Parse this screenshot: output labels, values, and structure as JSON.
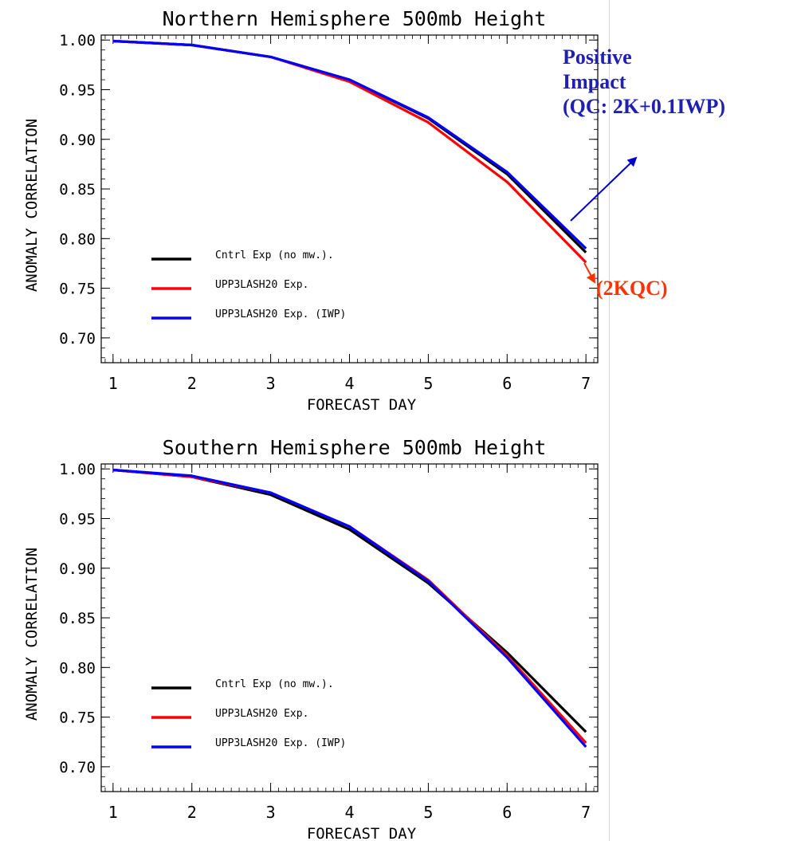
{
  "annotations": {
    "positive_impact": [
      "Positive",
      "Impact",
      "(QC: 2K+0.1IWP)"
    ],
    "qc_2k": "(2KQC)",
    "positive_color": "#1f1fb4",
    "qc_color": "#ff3300"
  },
  "chart_data": [
    {
      "type": "line",
      "title": "Northern Hemisphere 500mb Height",
      "xlabel": "FORECAST DAY",
      "ylabel": "ANOMALY CORRELATION",
      "xlim": [
        0.85,
        7.15
      ],
      "ylim": [
        0.675,
        1.005
      ],
      "x": [
        1,
        2,
        3,
        4,
        5,
        6,
        7
      ],
      "xticks": [
        1,
        2,
        3,
        4,
        5,
        6,
        7
      ],
      "yticks": [
        "0.70",
        "0.75",
        "0.80",
        "0.85",
        "0.90",
        "0.95",
        "1.00"
      ],
      "legend_position": "bottom-left",
      "series": [
        {
          "name": "Cntrl Exp (no mw.).",
          "color": "#000000",
          "values": [
            0.999,
            0.995,
            0.983,
            0.96,
            0.921,
            0.865,
            0.786
          ]
        },
        {
          "name": "UPP3LASH20 Exp.",
          "color": "#ff0000",
          "values": [
            0.999,
            0.995,
            0.983,
            0.958,
            0.917,
            0.857,
            0.776
          ]
        },
        {
          "name": "UPP3LASH20 Exp. (IWP)",
          "color": "#0000ff",
          "values": [
            0.999,
            0.995,
            0.983,
            0.96,
            0.922,
            0.867,
            0.79
          ]
        }
      ]
    },
    {
      "type": "line",
      "title": "Southern Hemisphere 500mb Height",
      "xlabel": "FORECAST DAY",
      "ylabel": "ANOMALY CORRELATION",
      "xlim": [
        0.85,
        7.15
      ],
      "ylim": [
        0.675,
        1.005
      ],
      "x": [
        1,
        2,
        3,
        4,
        5,
        6,
        7
      ],
      "xticks": [
        1,
        2,
        3,
        4,
        5,
        6,
        7
      ],
      "yticks": [
        "0.70",
        "0.75",
        "0.80",
        "0.85",
        "0.90",
        "0.95",
        "1.00"
      ],
      "legend_position": "bottom-left",
      "series": [
        {
          "name": "Cntrl Exp (no mw.).",
          "color": "#000000",
          "values": [
            0.999,
            0.992,
            0.974,
            0.939,
            0.885,
            0.815,
            0.735
          ]
        },
        {
          "name": "UPP3LASH20 Exp.",
          "color": "#ff0000",
          "values": [
            0.999,
            0.992,
            0.976,
            0.942,
            0.888,
            0.812,
            0.724
          ]
        },
        {
          "name": "UPP3LASH20 Exp. (IWP)",
          "color": "#0000ff",
          "values": [
            0.999,
            0.993,
            0.976,
            0.942,
            0.887,
            0.81,
            0.72
          ]
        }
      ]
    }
  ]
}
